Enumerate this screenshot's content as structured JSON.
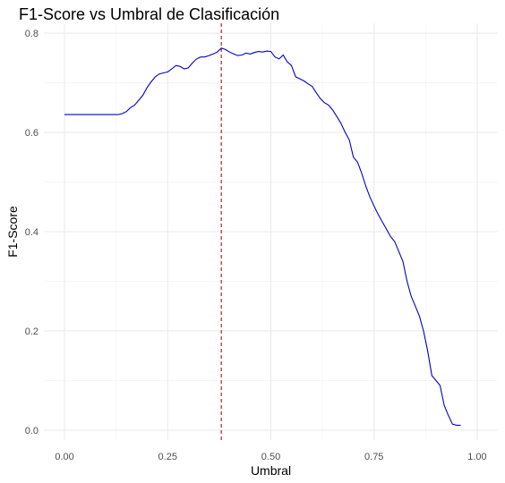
{
  "chart_data": {
    "type": "line",
    "title": "F1-Score vs Umbral de Clasificación",
    "xlabel": "Umbral",
    "ylabel": "F1-Score",
    "xlim": [
      -0.05,
      1.05
    ],
    "ylim": [
      -0.02,
      0.82
    ],
    "x_ticks": [
      0.0,
      0.25,
      0.5,
      0.75,
      1.0
    ],
    "x_tick_labels": [
      "0.00",
      "0.25",
      "0.50",
      "0.75",
      "1.00"
    ],
    "y_ticks": [
      0.0,
      0.2,
      0.4,
      0.6,
      0.8
    ],
    "y_tick_labels": [
      "0.0",
      "0.2",
      "0.4",
      "0.6",
      "0.8"
    ],
    "grid": true,
    "series": [
      {
        "color": "#0000cd",
        "x": [
          0.0,
          0.05,
          0.1,
          0.13,
          0.14,
          0.15,
          0.16,
          0.17,
          0.18,
          0.19,
          0.2,
          0.21,
          0.22,
          0.23,
          0.24,
          0.25,
          0.26,
          0.27,
          0.28,
          0.29,
          0.3,
          0.31,
          0.32,
          0.33,
          0.34,
          0.35,
          0.36,
          0.37,
          0.38,
          0.39,
          0.4,
          0.41,
          0.42,
          0.43,
          0.44,
          0.45,
          0.46,
          0.47,
          0.48,
          0.49,
          0.5,
          0.51,
          0.52,
          0.53,
          0.54,
          0.55,
          0.56,
          0.57,
          0.58,
          0.59,
          0.6,
          0.61,
          0.62,
          0.63,
          0.64,
          0.65,
          0.66,
          0.67,
          0.68,
          0.69,
          0.7,
          0.71,
          0.72,
          0.73,
          0.74,
          0.75,
          0.76,
          0.77,
          0.78,
          0.79,
          0.8,
          0.81,
          0.82,
          0.83,
          0.84,
          0.85,
          0.86,
          0.87,
          0.88,
          0.89,
          0.9,
          0.91,
          0.92,
          0.93,
          0.94,
          0.95,
          0.96
        ],
        "y": [
          0.636,
          0.636,
          0.636,
          0.636,
          0.638,
          0.642,
          0.65,
          0.655,
          0.665,
          0.675,
          0.69,
          0.702,
          0.712,
          0.718,
          0.72,
          0.722,
          0.728,
          0.735,
          0.733,
          0.728,
          0.73,
          0.74,
          0.748,
          0.752,
          0.752,
          0.755,
          0.758,
          0.762,
          0.77,
          0.767,
          0.762,
          0.758,
          0.755,
          0.756,
          0.76,
          0.758,
          0.761,
          0.763,
          0.762,
          0.764,
          0.763,
          0.752,
          0.748,
          0.756,
          0.742,
          0.735,
          0.712,
          0.708,
          0.704,
          0.698,
          0.693,
          0.68,
          0.668,
          0.66,
          0.655,
          0.645,
          0.632,
          0.618,
          0.6,
          0.585,
          0.55,
          0.54,
          0.518,
          0.492,
          0.47,
          0.452,
          0.435,
          0.42,
          0.405,
          0.39,
          0.38,
          0.36,
          0.34,
          0.3,
          0.27,
          0.25,
          0.23,
          0.2,
          0.16,
          0.11,
          0.1,
          0.09,
          0.05,
          0.03,
          0.012,
          0.01,
          0.01
        ]
      }
    ],
    "reference_line": {
      "x": 0.38,
      "color": "#b22222",
      "style": "dashed"
    }
  }
}
